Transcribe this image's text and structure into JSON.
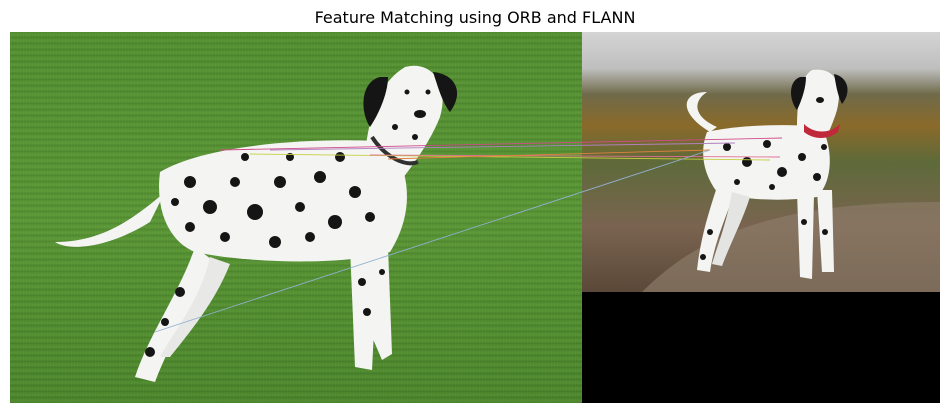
{
  "figure": {
    "title": "Feature Matching using ORB and FLANN"
  },
  "colors": {
    "grass_light": "#5f9a3a",
    "grass_dark": "#3f7524",
    "sky": "#d8d8d8",
    "dog_white": "#f4f4f2",
    "dog_spot": "#151515",
    "collar": "#c0293a",
    "black_fill": "#000000"
  },
  "images": [
    {
      "name": "query-image",
      "subject": "dalmatian-on-grass"
    },
    {
      "name": "train-image",
      "subject": "dalmatian-on-path"
    }
  ],
  "matches": [
    {
      "color": "#d04a8a"
    },
    {
      "color": "#c6d040"
    },
    {
      "color": "#e07090"
    },
    {
      "color": "#90b0d0"
    },
    {
      "color": "#e08040"
    },
    {
      "color": "#b080c0"
    }
  ]
}
